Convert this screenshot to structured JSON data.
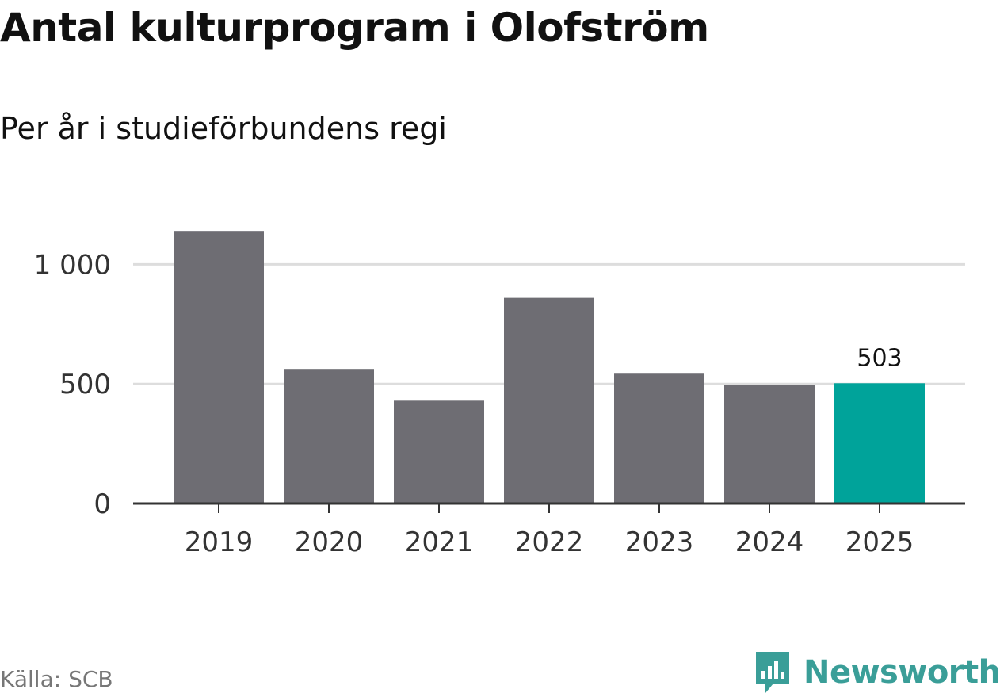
{
  "title": "Antal kulturprogram i Olofström",
  "subtitle": "Per år i studieförbundens regi",
  "source": "Källa: SCB",
  "brand": {
    "name": "Newsworthy",
    "icon": "newsworthy-logo-icon"
  },
  "colors": {
    "bar": "#6e6d73",
    "highlight": "#00a39a",
    "grid": "#dddddd",
    "axis": "#333333",
    "brand": "#3a9e98"
  },
  "chart_data": {
    "type": "bar",
    "title": "Antal kulturprogram i Olofström",
    "subtitle": "Per år i studieförbundens regi",
    "categories": [
      "2019",
      "2020",
      "2021",
      "2022",
      "2023",
      "2024",
      "2025"
    ],
    "values": [
      1140,
      563,
      430,
      860,
      543,
      495,
      503
    ],
    "highlight_index": 6,
    "data_labels": [
      {
        "index": 6,
        "text": "503"
      }
    ],
    "ylim": [
      0,
      1200
    ],
    "yticks": [
      0,
      500,
      1000
    ],
    "ytick_labels": [
      "0",
      "500",
      "1 000"
    ],
    "grid": true,
    "xlabel": "",
    "ylabel": ""
  }
}
